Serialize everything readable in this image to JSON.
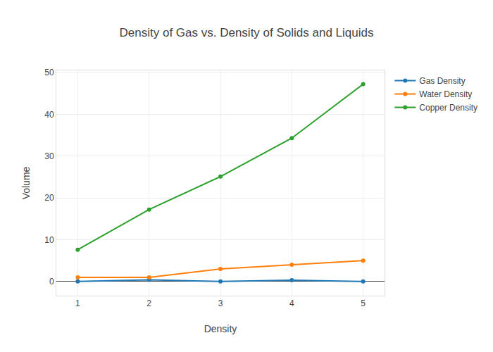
{
  "chart_data": {
    "type": "line",
    "title": "Density of Gas vs. Density of Solids and Liquids",
    "x_label": "Density",
    "y_label": "Volume",
    "x": [
      1,
      2,
      3,
      4,
      5
    ],
    "series": [
      {
        "name": "Gas Density",
        "color": "#1f77b4",
        "values": [
          0,
          0.4,
          0,
          0.3,
          0
        ]
      },
      {
        "name": "Water Density",
        "color": "#ff7f0e",
        "values": [
          1,
          1,
          3,
          4,
          5
        ]
      },
      {
        "name": "Copper Density",
        "color": "#2ca02c",
        "values": [
          7.6,
          17.2,
          25.1,
          34.3,
          47.2
        ]
      }
    ],
    "xlim": [
      0.7,
      5.3
    ],
    "xticks": [
      1,
      2,
      3,
      4,
      5
    ],
    "ylim": [
      -3.4,
      50.5
    ],
    "yticks": [
      0,
      10,
      20,
      30,
      40,
      50
    ],
    "grid": true,
    "legend": "top-right",
    "marker": "circle",
    "line_style": "solid"
  }
}
